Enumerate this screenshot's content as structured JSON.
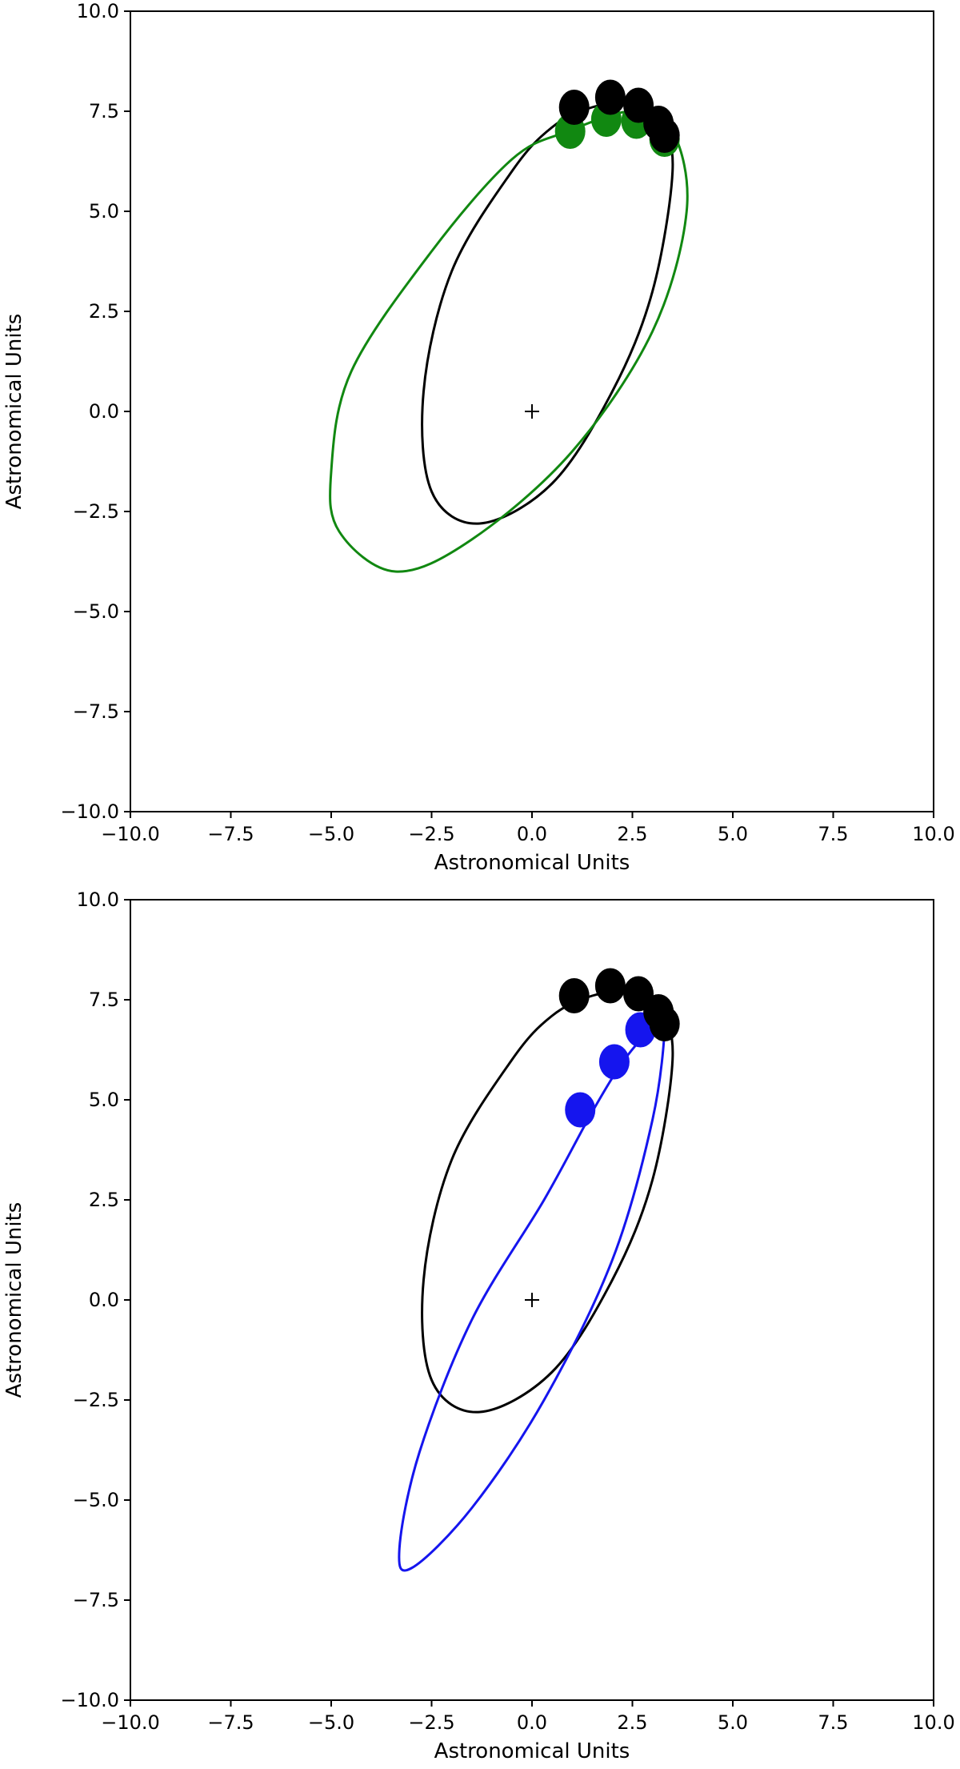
{
  "chart_data": [
    {
      "type": "scatter",
      "xlabel": "Astronomical Units",
      "ylabel": "Astronomical Units",
      "xlim": [
        -10,
        10
      ],
      "ylim": [
        -10,
        10
      ],
      "xticks": [
        "−10.0",
        "−7.5",
        "−5.0",
        "−2.5",
        "0.0",
        "2.5",
        "5.0",
        "7.5",
        "10.0"
      ],
      "yticks": [
        "−10.0",
        "−7.5",
        "−5.0",
        "−2.5",
        "0.0",
        "2.5",
        "5.0",
        "7.5",
        "10.0"
      ],
      "xtick_values": [
        -10,
        -7.5,
        -5,
        -2.5,
        0,
        2.5,
        5,
        7.5,
        10
      ],
      "ytick_values": [
        -10,
        -7.5,
        -5,
        -2.5,
        0,
        2.5,
        5,
        7.5,
        10
      ],
      "grid": false,
      "center_marker": [
        0,
        0
      ],
      "orbits": [
        {
          "color": "#000000",
          "path": [
            [
              0.5,
              7.1
            ],
            [
              1.5,
              7.6
            ],
            [
              2.5,
              7.7
            ],
            [
              3.2,
              7.3
            ],
            [
              3.5,
              6.0
            ],
            [
              3.0,
              3.0
            ],
            [
              2.0,
              0.5
            ],
            [
              0.5,
              -1.8
            ],
            [
              -1.3,
              -2.8
            ],
            [
              -2.5,
              -2.0
            ],
            [
              -2.7,
              0.5
            ],
            [
              -2.0,
              3.5
            ],
            [
              -0.5,
              6.0
            ],
            [
              0.5,
              7.1
            ]
          ]
        },
        {
          "color": "#118811",
          "path": [
            [
              0.9,
              7.0
            ],
            [
              2.5,
              7.5
            ],
            [
              3.5,
              7.0
            ],
            [
              3.85,
              5.0
            ],
            [
              3.0,
              2.0
            ],
            [
              1.0,
              -1.0
            ],
            [
              -1.5,
              -3.2
            ],
            [
              -3.4,
              -4.0
            ],
            [
              -4.8,
              -3.0
            ],
            [
              -5.0,
              -1.5
            ],
            [
              -4.5,
              1.0
            ],
            [
              -2.5,
              4.0
            ],
            [
              -0.5,
              6.3
            ],
            [
              0.9,
              7.0
            ]
          ]
        }
      ],
      "points": [
        {
          "color": "#118811",
          "xy": [
            [
              0.95,
              7.0
            ],
            [
              1.85,
              7.3
            ],
            [
              2.6,
              7.25
            ],
            [
              3.3,
              6.8
            ]
          ]
        },
        {
          "color": "#000000",
          "xy": [
            [
              1.05,
              7.6
            ],
            [
              1.95,
              7.85
            ],
            [
              2.65,
              7.65
            ],
            [
              3.15,
              7.2
            ],
            [
              3.3,
              6.9
            ]
          ]
        }
      ]
    },
    {
      "type": "scatter",
      "xlabel": "Astronomical Units",
      "ylabel": "Astronomical Units",
      "xlim": [
        -10,
        10
      ],
      "ylim": [
        -10,
        10
      ],
      "xticks": [
        "−10.0",
        "−7.5",
        "−5.0",
        "−2.5",
        "0.0",
        "2.5",
        "5.0",
        "7.5",
        "10.0"
      ],
      "yticks": [
        "−10.0",
        "−7.5",
        "−5.0",
        "−2.5",
        "0.0",
        "2.5",
        "5.0",
        "7.5",
        "10.0"
      ],
      "xtick_values": [
        -10,
        -7.5,
        -5,
        -2.5,
        0,
        2.5,
        5,
        7.5,
        10
      ],
      "ytick_values": [
        -10,
        -7.5,
        -5,
        -2.5,
        0,
        2.5,
        5,
        7.5,
        10
      ],
      "grid": false,
      "center_marker": [
        0,
        0
      ],
      "orbits": [
        {
          "color": "#000000",
          "path": [
            [
              0.5,
              7.1
            ],
            [
              1.5,
              7.6
            ],
            [
              2.5,
              7.7
            ],
            [
              3.2,
              7.3
            ],
            [
              3.5,
              6.0
            ],
            [
              3.0,
              3.0
            ],
            [
              2.0,
              0.5
            ],
            [
              0.5,
              -1.8
            ],
            [
              -1.3,
              -2.8
            ],
            [
              -2.5,
              -2.0
            ],
            [
              -2.7,
              0.5
            ],
            [
              -2.0,
              3.5
            ],
            [
              -0.5,
              6.0
            ],
            [
              0.5,
              7.1
            ]
          ]
        },
        {
          "color": "#1515ee",
          "path": [
            [
              3.3,
              6.9
            ],
            [
              3.0,
              4.5
            ],
            [
              2.0,
              1.0
            ],
            [
              0.3,
              -2.5
            ],
            [
              -1.5,
              -5.2
            ],
            [
              -3.0,
              -6.7
            ],
            [
              -3.3,
              -6.2
            ],
            [
              -2.8,
              -3.8
            ],
            [
              -1.5,
              -0.5
            ],
            [
              0.3,
              2.5
            ],
            [
              1.5,
              4.7
            ],
            [
              2.3,
              6.0
            ],
            [
              3.0,
              6.8
            ],
            [
              3.3,
              6.9
            ]
          ]
        }
      ],
      "points": [
        {
          "color": "#1515ee",
          "xy": [
            [
              1.2,
              4.75
            ],
            [
              2.05,
              5.95
            ],
            [
              2.7,
              6.75
            ]
          ]
        },
        {
          "color": "#000000",
          "xy": [
            [
              1.05,
              7.6
            ],
            [
              1.95,
              7.85
            ],
            [
              2.65,
              7.65
            ],
            [
              3.15,
              7.2
            ],
            [
              3.3,
              6.9
            ]
          ]
        }
      ]
    }
  ]
}
